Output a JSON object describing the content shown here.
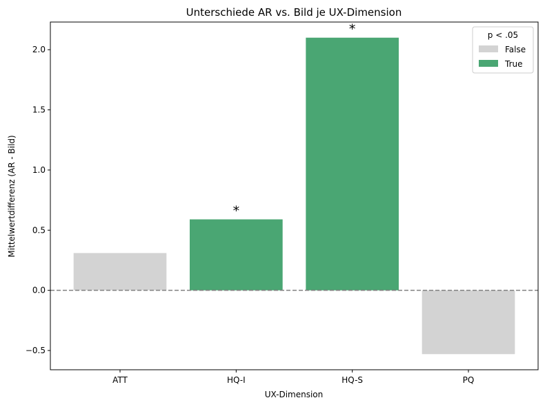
{
  "chart_data": {
    "type": "bar",
    "title": "Unterschiede AR vs. Bild je UX-Dimension",
    "xlabel": "UX-Dimension",
    "ylabel": "Mittelwertdifferenz (AR - Bild)",
    "categories": [
      "ATT",
      "HQ-I",
      "HQ-S",
      "PQ"
    ],
    "values": [
      0.31,
      0.59,
      2.1,
      -0.53
    ],
    "significant": [
      false,
      true,
      true,
      false
    ],
    "significance_marker": "*",
    "ylim": [
      -0.66,
      2.23
    ],
    "yticks": [
      -0.5,
      0.0,
      0.5,
      1.0,
      1.5,
      2.0
    ],
    "ytick_labels": [
      "−0.5",
      "0.0",
      "0.5",
      "1.0",
      "1.5",
      "2.0"
    ],
    "reference_line": {
      "y": 0,
      "style": "dashed",
      "color": "#808080"
    },
    "grid": false,
    "legend": {
      "title": "p < .05",
      "placement": "top-right",
      "entries": [
        {
          "label": "False",
          "color": "#d3d3d3"
        },
        {
          "label": "True",
          "color": "#4aa673"
        }
      ]
    },
    "colors": {
      "false": "#d3d3d3",
      "true": "#4aa673"
    }
  }
}
